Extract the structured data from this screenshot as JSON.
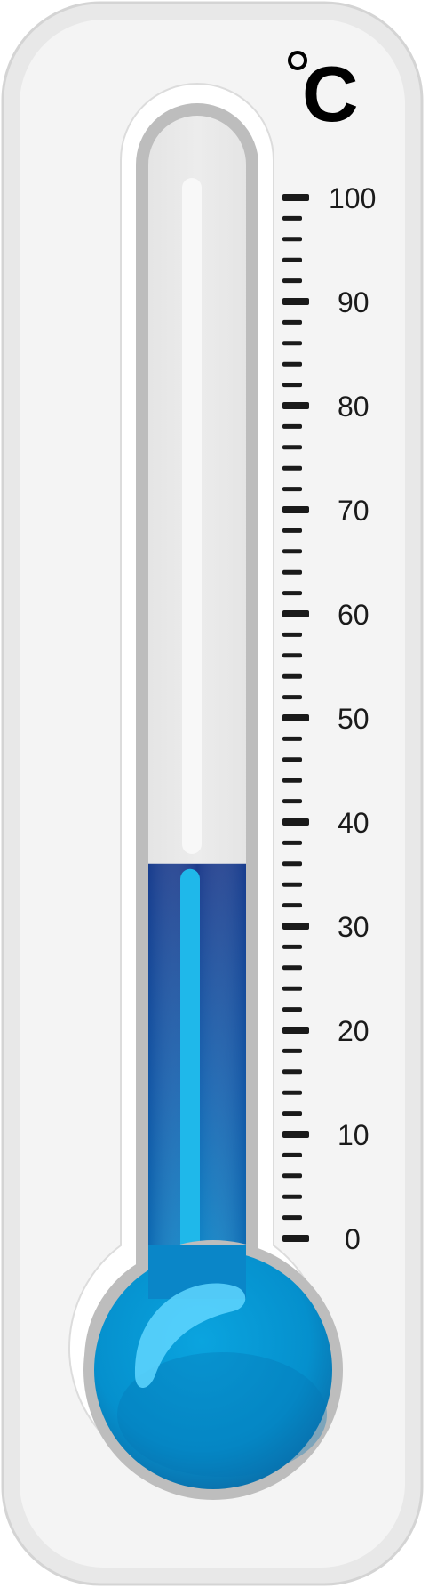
{
  "thermometer": {
    "unit": "C",
    "scale_min": 0,
    "scale_max": 100,
    "major_step": 10,
    "minor_per_major": 5,
    "reading": 36,
    "labels": [
      "0",
      "10",
      "20",
      "30",
      "40",
      "50",
      "60",
      "70",
      "80",
      "90",
      "100"
    ],
    "colors": {
      "frame": "#f3f3f3",
      "tube": "#e6e6e6",
      "tube_border": "#bdbdbd",
      "liquid_top": "#1e3c8c",
      "liquid_bottom": "#0b7fc2",
      "bulb": "#0596d3",
      "highlight": "#5fd6ff",
      "ticks": "#1a1a1a"
    }
  }
}
